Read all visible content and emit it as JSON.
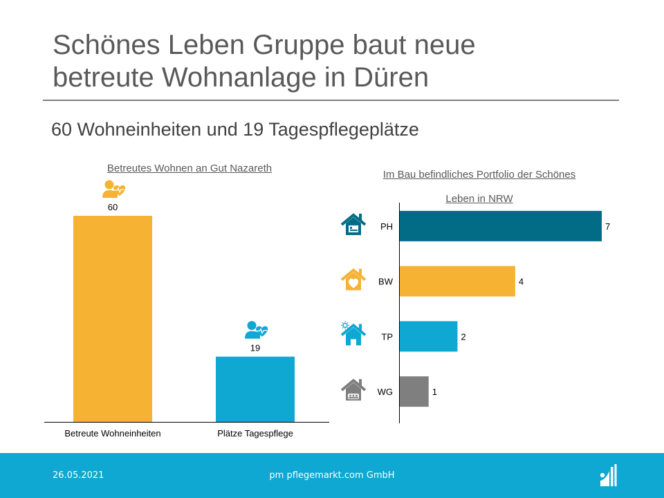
{
  "header": {
    "title_line1": "Schönes Leben Gruppe baut neue",
    "title_line2": "betreute Wohnanlage in Düren",
    "subtitle": "60 Wohneinheiten und 19 Tagespflegeplätze"
  },
  "footer": {
    "date": "26.05.2021",
    "company": "pm pflegemarkt.com GmbH",
    "logo_icon": "pflegemarkt-logo-icon"
  },
  "chart_data": [
    {
      "type": "bar",
      "title": "Betreutes Wohnen an Gut Nazareth",
      "categories": [
        "Betreute Wohneinheiten",
        "Plätze Tagespflege"
      ],
      "values": [
        60,
        19
      ],
      "labels": [
        "60",
        "19"
      ],
      "colors": [
        "#f5b233",
        "#0ea8d2"
      ],
      "icons": [
        "person-heartbeat-icon",
        "person-heartbeat-icon"
      ],
      "xlabel": "",
      "ylabel": "",
      "ylim": [
        0,
        60
      ],
      "grid": false
    },
    {
      "type": "bar",
      "orientation": "horizontal",
      "title": "Im Bau befindliches Portfolio der Schönes Leben in NRW",
      "title_line1": "Im Bau befindliches Portfolio der Schönes",
      "title_line2": "Leben in NRW",
      "categories": [
        "PH",
        "BW",
        "TP",
        "WG"
      ],
      "values": [
        7,
        4,
        2,
        1
      ],
      "labels": [
        "7",
        "4",
        "2",
        "1"
      ],
      "colors": [
        "#026b86",
        "#f5b233",
        "#0ea8d2",
        "#7f7f7f"
      ],
      "icons": [
        "nursing-home-bed-icon",
        "house-heart-icon",
        "house-sun-icon",
        "house-group-icon"
      ],
      "xlim": [
        0,
        7
      ],
      "grid": false
    }
  ]
}
